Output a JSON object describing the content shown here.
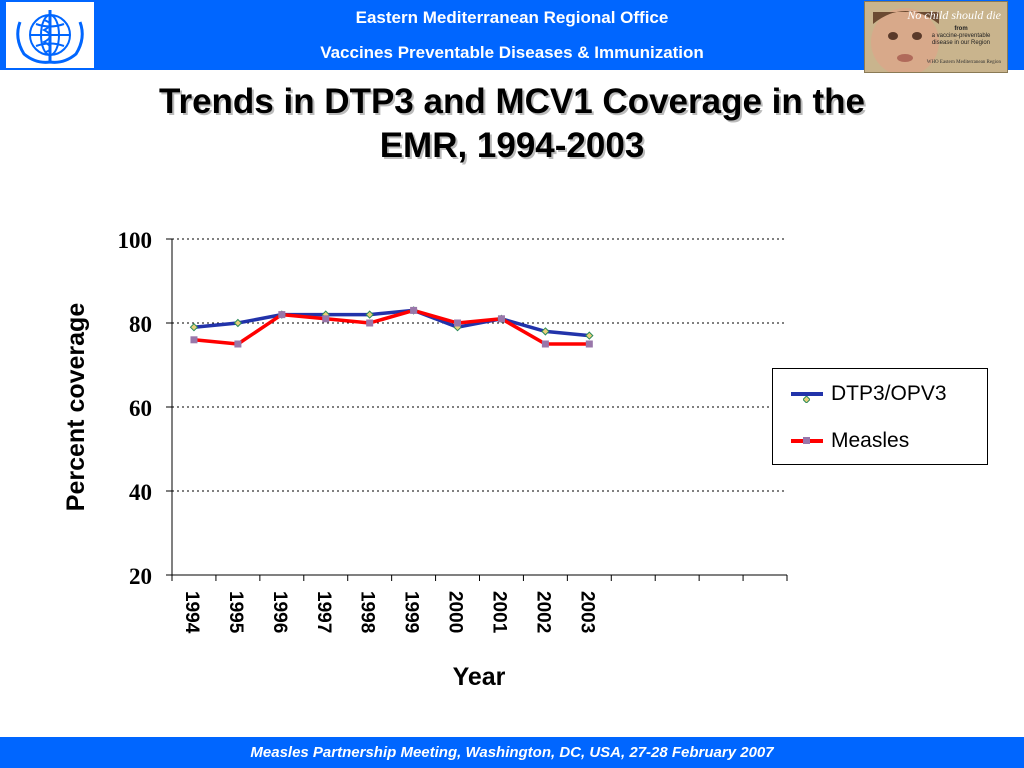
{
  "header": {
    "line1": "Eastern Mediterranean Regional Office",
    "line2": "Vaccines Preventable Diseases & Immunization",
    "logo_icon": "who-emblem-icon",
    "photo": {
      "text1": "No child should die",
      "text2a": "from",
      "text2b": "a vaccine-preventable disease in our Region",
      "text3": "WHO Eastern Mediterranean Region"
    }
  },
  "title": {
    "line1": "Trends in DTP3 and MCV1 Coverage in the",
    "line2": "EMR, 1994-2003"
  },
  "footer": {
    "text": "Measles Partnership Meeting, Washington, DC, USA, 27-28 February 2007"
  },
  "colors": {
    "header_bg": "#0066ff",
    "dtp3": "#2233aa",
    "measles": "#ff0000"
  },
  "chart_data": {
    "type": "line",
    "title": "Trends in DTP3 and MCV1 Coverage in the EMR, 1994-2003",
    "xlabel": "Year",
    "ylabel": "Percent coverage",
    "categories": [
      "1994",
      "1995",
      "1996",
      "1997",
      "1998",
      "1999",
      "2000",
      "2001",
      "2002",
      "2003"
    ],
    "x_slots": 14,
    "ylim": [
      20,
      100
    ],
    "yticks": [
      20,
      40,
      60,
      80,
      100
    ],
    "grid": "dotted",
    "legend_position": "right",
    "series": [
      {
        "name": "DTP3/OPV3",
        "values": [
          79,
          80,
          82,
          82,
          82,
          83,
          79,
          81,
          78,
          77
        ]
      },
      {
        "name": "Measles",
        "values": [
          76,
          75,
          82,
          81,
          80,
          83,
          80,
          81,
          75,
          75
        ]
      }
    ]
  }
}
